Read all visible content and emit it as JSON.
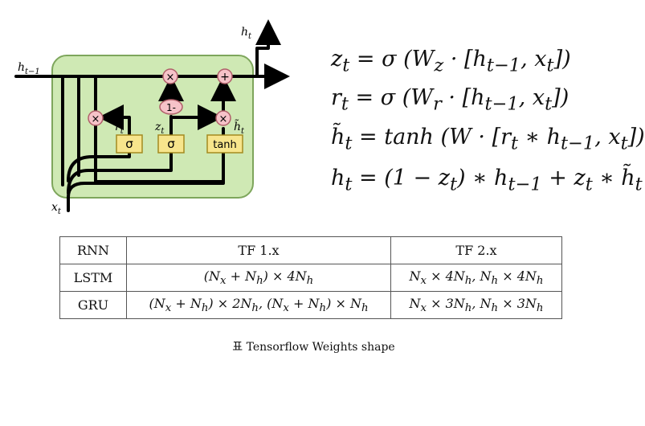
{
  "diagram": {
    "labels": {
      "h_prev": "h",
      "h_prev_sub": "t−1",
      "h_out": "h",
      "h_out_sub": "t",
      "x_in": "x",
      "x_in_sub": "t",
      "r": "r",
      "r_sub": "t",
      "z": "z",
      "z_sub": "t",
      "h_tilde": "h̃",
      "h_tilde_sub": "t"
    },
    "nodes": {
      "mul1": "×",
      "mul2": "×",
      "mul3": "×",
      "plus": "+",
      "one_minus": "1-"
    },
    "gates": {
      "sigma1": "σ",
      "sigma2": "σ",
      "tanh": "tanh"
    },
    "colors": {
      "cell_fill": "#cfe9b4",
      "cell_border": "#7ea65c",
      "node_fill": "#f6c2c8",
      "node_border": "#b0606a",
      "gate_fill": "#f7e58c",
      "gate_border": "#a48a20"
    }
  },
  "equations": [
    "z<sub>t</sub> = σ (W<sub>z</sub> · [h<sub>t−1</sub>, x<sub>t</sub>])",
    "r<sub>t</sub> = σ (W<sub>r</sub> · [h<sub>t−1</sub>, x<sub>t</sub>])",
    "h̃<sub>t</sub> = tanh (W · [r<sub>t</sub> ∗ h<sub>t−1</sub>, x<sub>t</sub>])",
    "h<sub>t</sub> = (1 − z<sub>t</sub>) ∗ h<sub>t−1</sub> + z<sub>t</sub> ∗ h̃<sub>t</sub>"
  ],
  "table": {
    "header": [
      "RNN",
      "TF 1.x",
      "TF 2.x"
    ],
    "rows": [
      [
        "LSTM",
        "(N<sub>x</sub> + N<sub>h</sub>) × 4N<sub>h</sub>",
        "N<sub>x</sub> × 4N<sub>h</sub>, N<sub>h</sub> × 4N<sub>h</sub>"
      ],
      [
        "GRU",
        "(N<sub>x</sub> + N<sub>h</sub>) × 2N<sub>h</sub>, (N<sub>x</sub> + N<sub>h</sub>) × N<sub>h</sub>",
        "N<sub>x</sub> × 3N<sub>h</sub>, N<sub>h</sub> × 3N<sub>h</sub>"
      ]
    ]
  },
  "caption": "표 Tensorflow Weights shape"
}
